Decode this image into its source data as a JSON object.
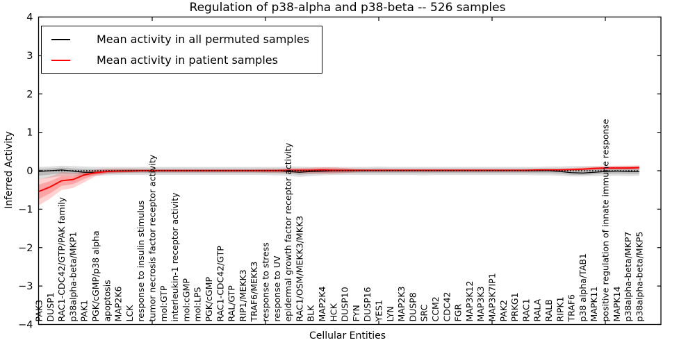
{
  "title": "Regulation of p38-alpha and p38-beta -- 526 samples",
  "legend": {
    "items": [
      {
        "label": "Mean activity in all permuted samples",
        "color": "#000000"
      },
      {
        "label": "Mean activity in patient samples",
        "color": "#ff0000"
      }
    ]
  },
  "chart_data": {
    "type": "line",
    "title": "Regulation of p38-alpha and p38-beta -- 526 samples",
    "xlabel": "Cellular Entities",
    "ylabel": "Inferred Activity",
    "ylim": [
      -4,
      4
    ],
    "yticks": [
      4,
      3,
      2,
      1,
      0,
      -1,
      -2,
      -3,
      -4
    ],
    "x_major_tick_indices": [
      10,
      20,
      30,
      40,
      50
    ],
    "grid": false,
    "legend_position": "upper left",
    "zero_line": {
      "y": 0,
      "style": "dotted",
      "color": "#000000"
    },
    "categories": [
      "PAK3",
      "DUSP1",
      "RAC1-CDC42/GTP/PAK family",
      "p38alpha-beta/MKP1",
      "PAK1",
      "PGK/cGMP/p38 alpha",
      "apoptosis",
      "MAP2K6",
      "LCK",
      "response to insulin stimulus",
      "tumor necrosis factor receptor activity",
      "mol:GTP",
      "interleukin-1 receptor activity",
      "mol:cGMP",
      "mol:LPS",
      "PGK/cGMP",
      "RAC1-CDC42/GTP",
      "RAL/GTP",
      "RIP1/MEKK3",
      "TRAF6/MEKK3",
      "response to stress",
      "response to UV",
      "epidermal growth factor receptor activity",
      "RAC1/OSM/MEKK3/MKK3",
      "BLK",
      "MAP2K4",
      "HCK",
      "DUSP10",
      "FYN",
      "DUSP16",
      "YES1",
      "LYN",
      "MAP2K3",
      "DUSP8",
      "SRC",
      "CCM2",
      "CDC42",
      "FGR",
      "MAP3K12",
      "MAP3K3",
      "MAP3K7IP1",
      "PAK2",
      "PRKG1",
      "RAC1",
      "RALA",
      "RALB",
      "RIPK1",
      "TRAF6",
      "p38 alpha/TAB1",
      "MAPK11",
      "positive regulation of innate immune response",
      "MAPK14",
      "p38alpha-beta/MKP7",
      "p38alpha-beta/MKP5"
    ],
    "series": [
      {
        "name": "Mean activity in all permuted samples",
        "color": "#000000",
        "values": [
          -0.02,
          0.0,
          0.02,
          -0.01,
          -0.04,
          -0.04,
          -0.02,
          -0.01,
          0,
          0,
          0,
          0,
          0,
          0,
          0,
          0,
          0,
          0,
          0,
          0,
          0,
          0,
          -0.02,
          -0.04,
          -0.02,
          -0.01,
          0,
          0,
          0,
          0,
          0,
          0,
          0,
          0,
          0,
          0,
          0,
          0,
          0,
          0,
          0,
          0,
          0,
          0,
          0,
          0,
          -0.02,
          -0.05,
          -0.06,
          -0.04,
          -0.02,
          -0.01,
          -0.02,
          -0.02
        ],
        "band": {
          "color": "#000000",
          "opacity": 0.13,
          "top": [
            0.1,
            0.11,
            0.13,
            0.12,
            0.11,
            0.1,
            0.1,
            0.1,
            0.1,
            0.1,
            0.1,
            0.1,
            0.1,
            0.1,
            0.1,
            0.1,
            0.1,
            0.1,
            0.1,
            0.1,
            0.1,
            0.1,
            0.11,
            0.11,
            0.1,
            0.1,
            0.1,
            0.1,
            0.1,
            0.1,
            0.11,
            0.1,
            0.1,
            0.1,
            0.1,
            0.1,
            0.1,
            0.1,
            0.1,
            0.1,
            0.1,
            0.1,
            0.1,
            0.1,
            0.1,
            0.11,
            0.11,
            0.12,
            0.12,
            0.12,
            0.11,
            0.11,
            0.12,
            0.12
          ],
          "bottom": [
            -0.22,
            -0.18,
            -0.14,
            -0.13,
            -0.14,
            -0.13,
            -0.12,
            -0.11,
            -0.11,
            -0.11,
            -0.11,
            -0.11,
            -0.11,
            -0.11,
            -0.11,
            -0.11,
            -0.11,
            -0.11,
            -0.11,
            -0.11,
            -0.11,
            -0.12,
            -0.13,
            -0.16,
            -0.14,
            -0.12,
            -0.11,
            -0.11,
            -0.11,
            -0.11,
            -0.11,
            -0.11,
            -0.11,
            -0.11,
            -0.12,
            -0.11,
            -0.11,
            -0.11,
            -0.11,
            -0.11,
            -0.11,
            -0.11,
            -0.11,
            -0.11,
            -0.12,
            -0.12,
            -0.13,
            -0.15,
            -0.15,
            -0.14,
            -0.13,
            -0.13,
            -0.14,
            -0.13
          ]
        }
      },
      {
        "name": "Mean activity in patient samples",
        "color": "#ff0000",
        "values": [
          -0.54,
          -0.42,
          -0.26,
          -0.23,
          -0.11,
          -0.05,
          -0.02,
          -0.01,
          -0.01,
          0,
          0,
          0,
          0,
          0,
          0,
          0,
          0,
          0,
          0,
          0,
          0,
          0,
          0.01,
          0.01,
          0.01,
          0.02,
          0.01,
          0.01,
          0.01,
          0.01,
          0.01,
          0.01,
          0.01,
          0.01,
          0.01,
          0.01,
          0.01,
          0.01,
          0.01,
          0.01,
          0.01,
          0.01,
          0.01,
          0.01,
          0.02,
          0.02,
          0.02,
          0.03,
          0.04,
          0.06,
          0.07,
          0.07,
          0.07,
          0.08
        ],
        "band": {
          "color": "#ff0000",
          "opacity": 0.18,
          "top": [
            -0.22,
            -0.15,
            -0.04,
            -0.06,
            -0.02,
            0.03,
            0.05,
            0.05,
            0.05,
            0.04,
            0.04,
            0.04,
            0.04,
            0.04,
            0.04,
            0.04,
            0.04,
            0.04,
            0.04,
            0.04,
            0.05,
            0.05,
            0.06,
            0.07,
            0.08,
            0.09,
            0.09,
            0.07,
            0.05,
            0.04,
            0.04,
            0.04,
            0.04,
            0.04,
            0.04,
            0.04,
            0.04,
            0.04,
            0.04,
            0.04,
            0.04,
            0.04,
            0.04,
            0.04,
            0.05,
            0.05,
            0.06,
            0.07,
            0.09,
            0.11,
            0.12,
            0.13,
            0.13,
            0.14
          ],
          "bottom": [
            -0.9,
            -0.72,
            -0.5,
            -0.45,
            -0.3,
            -0.14,
            -0.08,
            -0.06,
            -0.05,
            -0.04,
            -0.04,
            -0.04,
            -0.04,
            -0.04,
            -0.04,
            -0.04,
            -0.04,
            -0.04,
            -0.04,
            -0.04,
            -0.05,
            -0.05,
            -0.05,
            -0.06,
            -0.07,
            -0.08,
            -0.08,
            -0.06,
            -0.04,
            -0.03,
            -0.03,
            -0.03,
            -0.03,
            -0.03,
            -0.03,
            -0.03,
            -0.03,
            -0.03,
            -0.03,
            -0.03,
            -0.03,
            -0.03,
            -0.03,
            -0.03,
            -0.02,
            -0.01,
            0.0,
            0.0,
            0.01,
            0.02,
            0.03,
            0.03,
            0.03,
            0.03
          ]
        }
      }
    ]
  }
}
